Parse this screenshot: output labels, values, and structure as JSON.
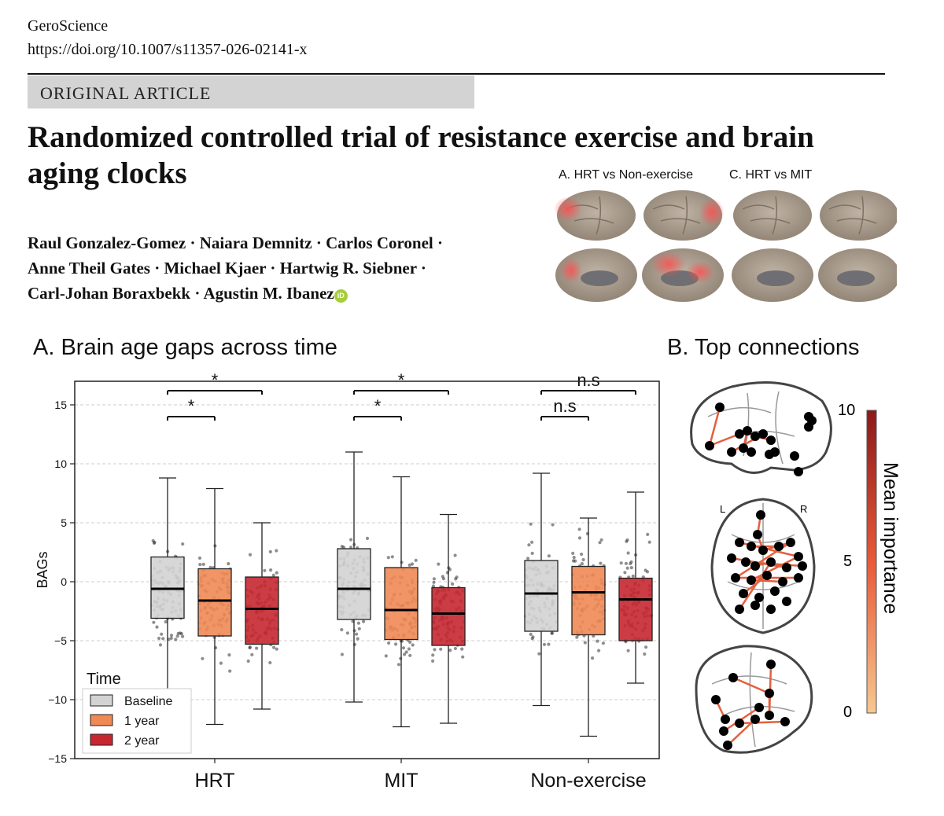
{
  "header": {
    "journal": "GeroScience",
    "doi": "https://doi.org/10.1007/s11357-026-02141-x",
    "article_type": "ORIGINAL ARTICLE"
  },
  "article": {
    "title_line1": "Randomized controlled trial of resistance exercise and brain",
    "title_line2": "aging clocks",
    "authors_line1": "Raul Gonzalez-Gomez · Naiara Demnitz · Carlos Coronel ·",
    "authors_line2": "Anne Theil Gates · Michael Kjaer · Hartwig R. Siebner ·",
    "authors_line3": "Carl-Johan Boraxbekk · Agustin M. Ibanez",
    "orcid_badge": "iD"
  },
  "figure": {
    "brain_panel_a_label": "A. HRT vs Non-exercise",
    "brain_panel_c_label": "C. HRT vs MIT",
    "panel_a_title": "A. Brain age gaps across time",
    "panel_b_title": "B. Top connections",
    "colorbar_label": "Mean importance",
    "colorbar_ticks": [
      "10",
      "5",
      "0"
    ],
    "hemisphere_left": "L",
    "hemisphere_right": "R"
  },
  "chart_data": {
    "type": "box",
    "ylabel": "BAGs",
    "xlabel": "",
    "ylim": [
      -15,
      17
    ],
    "yticks": [
      15,
      10,
      5,
      0,
      -5,
      -10,
      -15
    ],
    "ytick_labels": [
      "15",
      "10",
      "5",
      "0",
      "−5",
      "−10",
      "−15"
    ],
    "grid": "horizontal dashed",
    "legend_title": "Time",
    "legend_position": "bottom-left",
    "categories": [
      "HRT",
      "MIT",
      "Non-exercise"
    ],
    "series": [
      {
        "name": "Baseline",
        "color": "#d3d3d3",
        "boxes": [
          {
            "whisker_low": -10.0,
            "q1": -3.1,
            "median": -0.6,
            "q3": 2.1,
            "whisker_high": 8.8
          },
          {
            "whisker_low": -10.2,
            "q1": -3.2,
            "median": -0.6,
            "q3": 2.8,
            "whisker_high": 11.0
          },
          {
            "whisker_low": -10.5,
            "q1": -4.2,
            "median": -1.0,
            "q3": 1.8,
            "whisker_high": 9.2
          }
        ]
      },
      {
        "name": "1 year",
        "color": "#f08a55",
        "boxes": [
          {
            "whisker_low": -12.1,
            "q1": -4.6,
            "median": -1.6,
            "q3": 1.1,
            "whisker_high": 7.9
          },
          {
            "whisker_low": -12.3,
            "q1": -4.9,
            "median": -2.4,
            "q3": 1.2,
            "whisker_high": 8.9
          },
          {
            "whisker_low": -13.1,
            "q1": -4.5,
            "median": -0.9,
            "q3": 1.3,
            "whisker_high": 5.4
          }
        ]
      },
      {
        "name": "2 year",
        "color": "#c72730",
        "boxes": [
          {
            "whisker_low": -10.8,
            "q1": -5.3,
            "median": -2.3,
            "q3": 0.4,
            "whisker_high": 5.0
          },
          {
            "whisker_low": -12.0,
            "q1": -5.4,
            "median": -2.7,
            "q3": -0.5,
            "whisker_high": 5.7
          },
          {
            "whisker_low": -8.6,
            "q1": -5.0,
            "median": -1.5,
            "q3": 0.3,
            "whisker_high": 7.6
          }
        ]
      }
    ],
    "significance": [
      {
        "category": "HRT",
        "from": "Baseline",
        "to": "1 year",
        "label": "*"
      },
      {
        "category": "HRT",
        "from": "Baseline",
        "to": "2 year",
        "label": "*"
      },
      {
        "category": "MIT",
        "from": "Baseline",
        "to": "1 year",
        "label": "*"
      },
      {
        "category": "MIT",
        "from": "Baseline",
        "to": "2 year",
        "label": "*"
      },
      {
        "category": "Non-exercise",
        "from": "Baseline",
        "to": "1 year",
        "label": "n.s"
      },
      {
        "category": "Non-exercise",
        "from": "Baseline",
        "to": "2 year",
        "label": "n.s"
      }
    ],
    "colors": {
      "axis": "#222222",
      "grid": "#cccccc",
      "points": "#333333",
      "connection": "#e2603f"
    }
  }
}
